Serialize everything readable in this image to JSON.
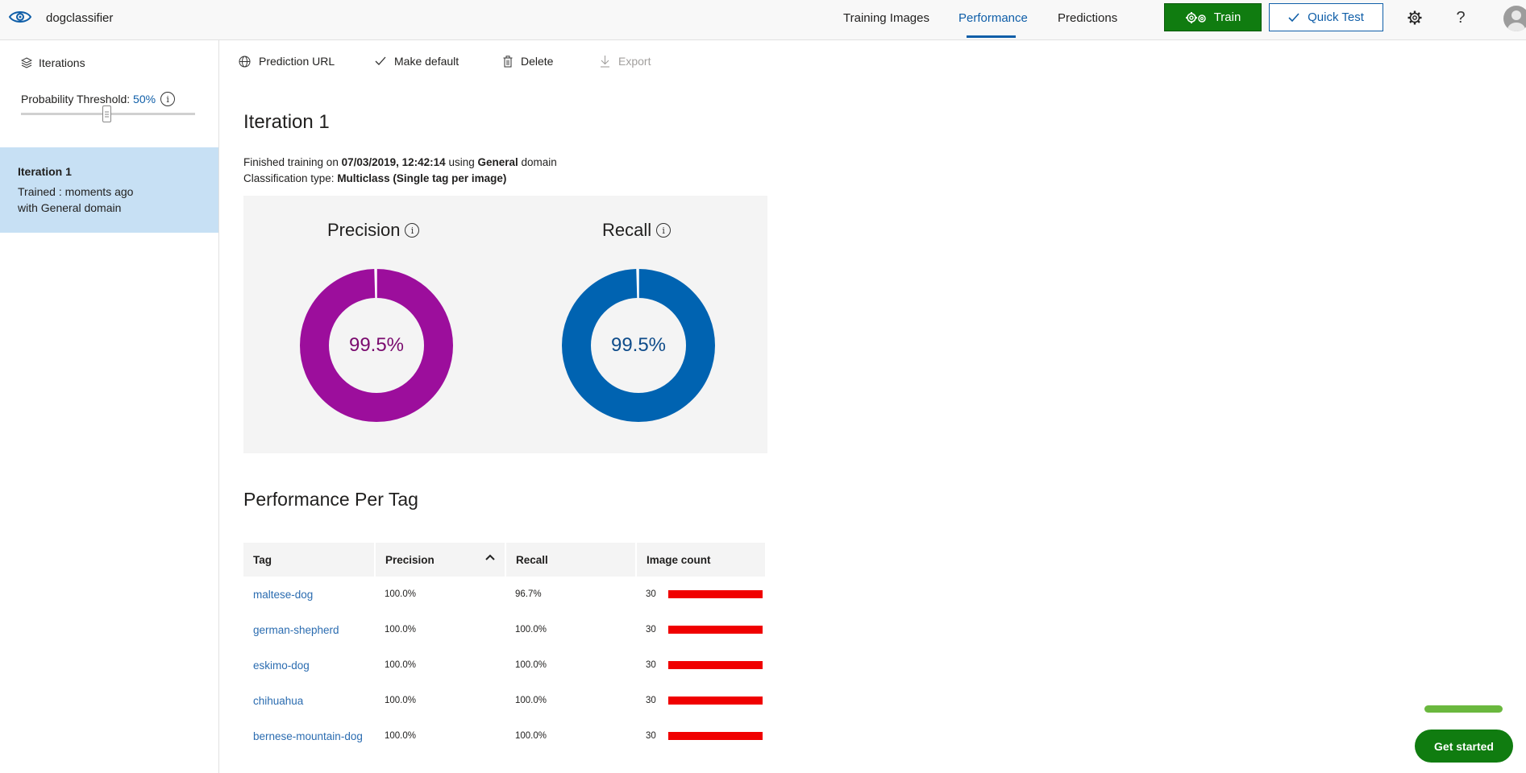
{
  "header": {
    "project_name": "dogclassifier",
    "nav": [
      {
        "label": "Training Images"
      },
      {
        "label": "Performance",
        "active": true
      },
      {
        "label": "Predictions"
      }
    ],
    "train_label": "Train",
    "quick_test_label": "Quick Test",
    "icons": [
      "eye-icon",
      "gear-icon",
      "help-icon",
      "avatar"
    ]
  },
  "sidebar": {
    "iterations_label": "Iterations",
    "threshold_label": "Probability Threshold: ",
    "threshold_value": "50%",
    "threshold_fraction": 0.5,
    "iteration": {
      "name": "Iteration 1",
      "line1": "Trained : moments ago",
      "line2": "with General domain"
    }
  },
  "toolbar": {
    "prediction_url": "Prediction URL",
    "make_default": "Make default",
    "delete": "Delete",
    "export": "Export"
  },
  "main": {
    "title": "Iteration 1",
    "finished_prefix": "Finished training on ",
    "finished_date": "07/03/2019, 12:42:14",
    "finished_mid": " using ",
    "finished_domain": "General",
    "finished_suffix": " domain",
    "classtype_prefix": "Classification type: ",
    "classtype_value": "Multiclass (Single tag per image)",
    "precision": {
      "title": "Precision",
      "value": "99.5%",
      "fraction": 0.995,
      "color": "#9c0e9c",
      "text_color": "#7a0a6e"
    },
    "recall": {
      "title": "Recall",
      "value": "99.5%",
      "fraction": 0.995,
      "color": "#0063b1",
      "text_color": "#0f4c8a"
    },
    "per_tag_title": "Performance Per Tag",
    "table": {
      "headers": [
        "Tag",
        "Precision",
        "Recall",
        "Image count"
      ],
      "rows": [
        {
          "tag": "maltese-dog",
          "precision": "100.0%",
          "recall": "96.7%",
          "count": "30",
          "count_fraction": 1.0
        },
        {
          "tag": "german-shepherd",
          "precision": "100.0%",
          "recall": "100.0%",
          "count": "30",
          "count_fraction": 1.0
        },
        {
          "tag": "eskimo-dog",
          "precision": "100.0%",
          "recall": "100.0%",
          "count": "30",
          "count_fraction": 1.0
        },
        {
          "tag": "chihuahua",
          "precision": "100.0%",
          "recall": "100.0%",
          "count": "30",
          "count_fraction": 1.0
        },
        {
          "tag": "bernese-mountain-dog",
          "precision": "100.0%",
          "recall": "100.0%",
          "count": "30",
          "count_fraction": 1.0
        }
      ]
    }
  },
  "get_started_label": "Get started",
  "colors": {
    "accent": "#0f5ea8",
    "train_green": "#107c10",
    "bar_red": "#f00000",
    "selected_bg": "#c7e0f4"
  }
}
